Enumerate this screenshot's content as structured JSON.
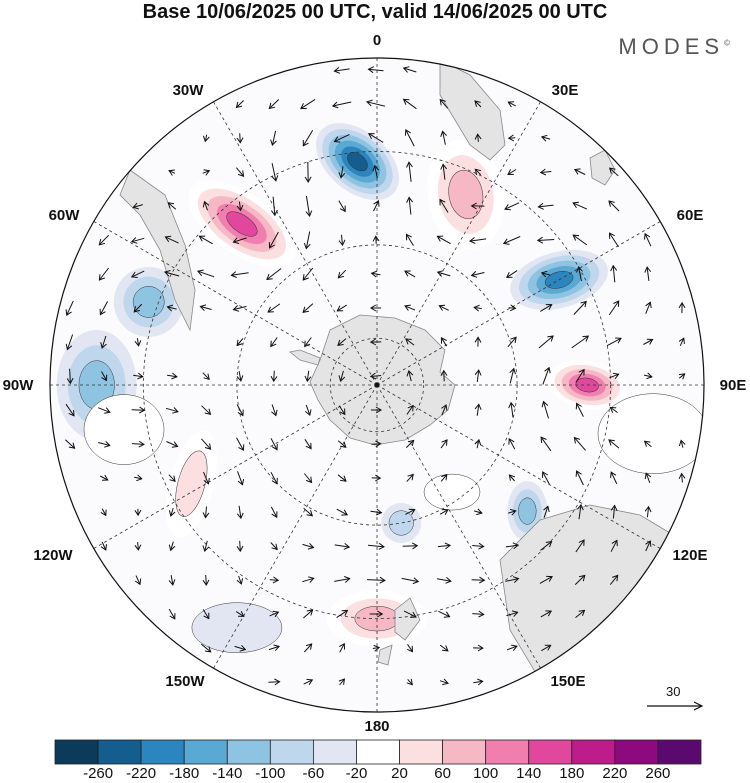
{
  "title": "Base 10/06/2025 00 UTC, valid 14/06/2025 00 UTC",
  "brand": "MODES",
  "brand_mark": "©",
  "map": {
    "projection": "south-polar-stereographic",
    "center": [
      377,
      385
    ],
    "radius": 327,
    "longitude_labels": [
      {
        "text": "0",
        "pos": [
          377,
          45
        ]
      },
      {
        "text": "30E",
        "pos": [
          565,
          95
        ]
      },
      {
        "text": "60E",
        "pos": [
          690,
          220
        ]
      },
      {
        "text": "90E",
        "pos": [
          733,
          390
        ]
      },
      {
        "text": "120E",
        "pos": [
          690,
          560
        ]
      },
      {
        "text": "150E",
        "pos": [
          568,
          686
        ]
      },
      {
        "text": "180",
        "pos": [
          377,
          731
        ]
      },
      {
        "text": "150W",
        "pos": [
          185,
          686
        ]
      },
      {
        "text": "120W",
        "pos": [
          53,
          560
        ]
      },
      {
        "text": "90W",
        "pos": [
          18,
          390
        ]
      },
      {
        "text": "60W",
        "pos": [
          64,
          220
        ]
      },
      {
        "text": "30W",
        "pos": [
          188,
          95
        ]
      }
    ]
  },
  "reference_vector": {
    "label": "30"
  },
  "colorbar": {
    "colors": [
      "#0b3a5a",
      "#145d8e",
      "#2b86bf",
      "#5aa8d4",
      "#8fc3e2",
      "#bfd7ec",
      "#e1e6f2",
      "#ffffff",
      "#fbdfe1",
      "#f6b8c5",
      "#f07fae",
      "#e2479e",
      "#bf1c8b",
      "#8c0a7e",
      "#5a0a6e"
    ],
    "labels": [
      "-260",
      "-220",
      "-180",
      "-140",
      "-100",
      "-60",
      "-20",
      "20",
      "60",
      "100",
      "140",
      "180",
      "220",
      "260"
    ]
  },
  "anomalies": [
    {
      "lon": -5,
      "lat": -42,
      "rx": 48,
      "ry": 30,
      "rot": 40,
      "value": -250
    },
    {
      "lon": -40,
      "lat": -45,
      "rx": 62,
      "ry": 30,
      "rot": 35,
      "value": 230
    },
    {
      "lon": 25,
      "lat": -45,
      "rx": 38,
      "ry": 55,
      "rot": -10,
      "value": 150
    },
    {
      "lon": 60,
      "lat": -45,
      "rx": 50,
      "ry": 28,
      "rot": -15,
      "value": -200
    },
    {
      "lon": 90,
      "lat": -45,
      "rx": 40,
      "ry": 24,
      "rot": 10,
      "value": 200
    },
    {
      "lon": 130,
      "lat": -48,
      "rx": 20,
      "ry": 30,
      "rot": 0,
      "value": -130
    },
    {
      "lon": 180,
      "lat": -40,
      "rx": 50,
      "ry": 28,
      "rot": 0,
      "value": 150
    },
    {
      "lon": -90,
      "lat": -30,
      "rx": 40,
      "ry": 55,
      "rot": 0,
      "value": -150
    },
    {
      "lon": -70,
      "lat": -38,
      "rx": 35,
      "ry": 35,
      "rot": 0,
      "value": -120
    },
    {
      "lon": -118,
      "lat": -45,
      "rx": 22,
      "ry": 55,
      "rot": 15,
      "value": 110
    },
    {
      "lon": -100,
      "lat": -35,
      "rx": 40,
      "ry": 35,
      "rot": 0,
      "value": 50
    },
    {
      "lon": 100,
      "lat": -30,
      "rx": 55,
      "ry": 40,
      "rot": 0,
      "value": 40
    },
    {
      "lon": 170,
      "lat": -60,
      "rx": 20,
      "ry": 20,
      "rot": 0,
      "value": -80
    },
    {
      "lon": 145,
      "lat": -62,
      "rx": 28,
      "ry": 18,
      "rot": 0,
      "value": 60
    },
    {
      "lon": -150,
      "lat": -30,
      "rx": 45,
      "ry": 25,
      "rot": 0,
      "value": -60
    }
  ]
}
